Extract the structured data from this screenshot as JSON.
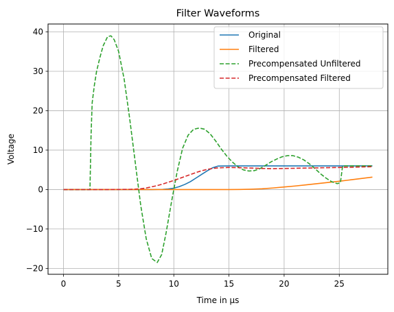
{
  "chart_data": {
    "type": "line",
    "title": "Filter Waveforms",
    "xlabel": "Time in µs",
    "ylabel": "Voltage",
    "xlim": [
      -1.4,
      29.4
    ],
    "ylim": [
      -21.5,
      42.0
    ],
    "x_ticks": [
      0,
      5,
      10,
      15,
      20,
      25
    ],
    "y_ticks": [
      -20,
      -10,
      0,
      10,
      20,
      30,
      40
    ],
    "x_tick_labels": [
      "0",
      "5",
      "10",
      "15",
      "20",
      "25"
    ],
    "y_tick_labels": [
      "−20",
      "−10",
      "0",
      "10",
      "20",
      "30",
      "40"
    ],
    "grid": true,
    "legend_position": "top-right",
    "series": [
      {
        "name": "Original",
        "color": "#1f77b4",
        "style": "solid",
        "x": [
          0,
          2,
          4,
          6,
          8,
          9,
          9.5,
          10,
          10.5,
          11,
          11.5,
          12,
          12.5,
          13,
          13.5,
          14,
          15,
          16,
          18,
          20,
          22,
          24,
          26,
          28
        ],
        "y": [
          0,
          0,
          0,
          0,
          0,
          0.05,
          0.15,
          0.35,
          0.75,
          1.3,
          2.0,
          2.9,
          3.8,
          4.7,
          5.5,
          5.95,
          6.0,
          6.0,
          6.0,
          6.0,
          6.0,
          6.0,
          6.0,
          6.0
        ]
      },
      {
        "name": "Filtered",
        "color": "#ff7f0e",
        "style": "solid",
        "x": [
          0,
          4,
          8,
          12,
          15,
          16,
          17,
          18,
          19,
          20,
          21,
          22,
          23,
          24,
          25,
          26,
          27,
          28
        ],
        "y": [
          0,
          0,
          0,
          0,
          0,
          0.02,
          0.08,
          0.2,
          0.4,
          0.65,
          0.9,
          1.2,
          1.5,
          1.8,
          2.1,
          2.45,
          2.8,
          3.15
        ]
      },
      {
        "name": "Precompensated Unfiltered",
        "color": "#2ca02c",
        "style": "dashed",
        "x": [
          0,
          1,
          2,
          2.4,
          2.5,
          2.6,
          2.8,
          3.0,
          3.3,
          3.6,
          4.0,
          4.3,
          4.6,
          5.0,
          5.5,
          6.0,
          6.5,
          7.0,
          7.5,
          8.0,
          8.5,
          8.9,
          9.3,
          9.8,
          10.3,
          10.8,
          11.3,
          11.8,
          12.3,
          12.8,
          13.3,
          13.8,
          14.3,
          14.8,
          15.3,
          15.8,
          16.3,
          16.8,
          17.3,
          17.8,
          18.3,
          18.8,
          19.3,
          19.8,
          20.3,
          20.8,
          21.3,
          21.8,
          22.3,
          22.8,
          23.3,
          23.8,
          24.3,
          24.8,
          25.1,
          25.3,
          25.5,
          26,
          27,
          28
        ],
        "y": [
          0,
          0,
          0,
          0,
          14,
          22,
          26.5,
          30,
          33.5,
          36.5,
          38.8,
          39.0,
          38.0,
          35.0,
          28.0,
          18.0,
          7.0,
          -4.0,
          -12.5,
          -17.5,
          -18.5,
          -16.5,
          -11.0,
          -3.0,
          4.5,
          10.5,
          13.8,
          15.3,
          15.6,
          15.3,
          14.1,
          12.3,
          10.3,
          8.5,
          7.0,
          5.8,
          5.0,
          4.7,
          4.8,
          5.3,
          6.1,
          7.0,
          7.7,
          8.3,
          8.6,
          8.6,
          8.2,
          7.5,
          6.5,
          5.3,
          4.0,
          2.9,
          2.0,
          1.5,
          1.7,
          6.0,
          6.0,
          6.0,
          6.0,
          6.0
        ]
      },
      {
        "name": "Precompensated Filtered",
        "color": "#d62728",
        "style": "dashed",
        "x": [
          0,
          2,
          4,
          6,
          6.5,
          7,
          7.5,
          8,
          8.5,
          9,
          9.5,
          10,
          10.5,
          11,
          11.5,
          12,
          12.5,
          13,
          13.5,
          14,
          15,
          16,
          17,
          18,
          19,
          20,
          22,
          24,
          26,
          28
        ],
        "y": [
          0,
          0,
          0,
          0.05,
          0.1,
          0.2,
          0.4,
          0.7,
          1.0,
          1.4,
          1.85,
          2.3,
          2.8,
          3.3,
          3.8,
          4.3,
          4.75,
          5.1,
          5.35,
          5.5,
          5.6,
          5.55,
          5.45,
          5.35,
          5.3,
          5.35,
          5.45,
          5.55,
          5.65,
          5.8
        ]
      }
    ]
  }
}
